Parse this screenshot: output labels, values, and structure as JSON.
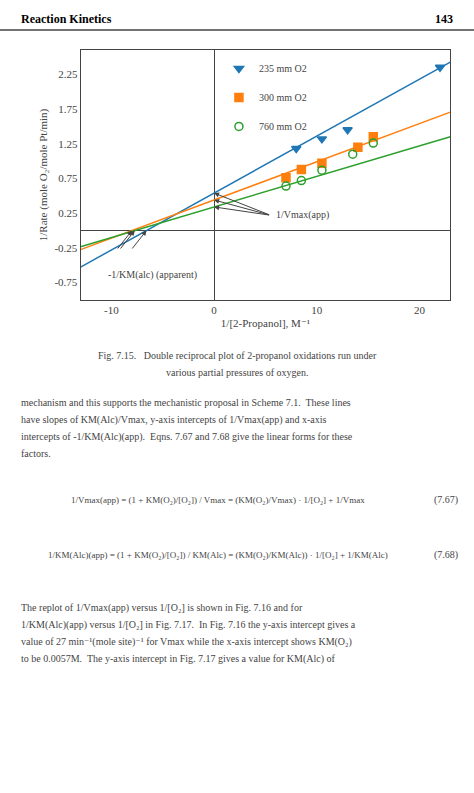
{
  "chart_data": {
    "type": "scatter",
    "header": "Reaction Kinetics",
    "page_number": "143",
    "xlabel": "1/[2-Propanol], M⁻¹",
    "ylabel": "1/Rate (mole O₂/mole Pt/min)",
    "xlim": [
      -13,
      23
    ],
    "ylim": [
      -1.0,
      2.6
    ],
    "xticks": [
      -10,
      0,
      10,
      20
    ],
    "yticks": [
      -0.75,
      -0.25,
      0.25,
      0.75,
      1.25,
      1.75,
      2.25
    ],
    "grid": false,
    "legend": "upper center",
    "series": [
      {
        "name": "235 mm O2",
        "marker": "triangle-down",
        "x": [
          8.0,
          10.5,
          13.0,
          22.0
        ],
        "y": [
          1.18,
          1.32,
          1.45,
          2.35
        ],
        "fit": {
          "x": [
            -13,
            23
          ],
          "y": [
            -0.526,
            2.426
          ]
        }
      },
      {
        "name": "300 mm O2",
        "marker": "square",
        "x": [
          7.0,
          8.5,
          10.5,
          14.0,
          15.5
        ],
        "y": [
          0.76,
          0.88,
          0.97,
          1.2,
          1.35
        ],
        "fit": {
          "x": [
            -13,
            23
          ],
          "y": [
            -0.275,
            1.705
          ]
        }
      },
      {
        "name": "760 mm O2",
        "marker": "circle-open",
        "x": [
          7.0,
          8.5,
          10.5,
          13.5,
          15.5
        ],
        "y": [
          0.64,
          0.72,
          0.87,
          1.1,
          1.26
        ],
        "fit": {
          "x": [
            -13,
            23
          ],
          "y": [
            -0.232,
            1.352
          ]
        }
      }
    ],
    "annotations": [
      {
        "text": "1/Vmax(app)",
        "points": [
          [
            0,
            0.54
          ],
          [
            0,
            0.44
          ],
          [
            0,
            0.34
          ]
        ]
      },
      {
        "text": "-1/KM(alc) (apparent)",
        "points": [
          [
            -6.585365853658537,
            0
          ],
          [
            -8.0,
            0
          ],
          [
            -7.7272727272727275,
            0
          ]
        ]
      }
    ],
    "caption": [
      "Fig. 7.15.   Double reciprocal plot of 2-propanol oxidations run under",
      "various partial pressures of oxygen."
    ],
    "body_text": [
      "mechanism and this supports the mechanistic proposal in Scheme 7.1.  These lines",
      "have slopes of KM(Alc)/Vmax, y-axis intercepts of 1/Vmax(app) and x-axis",
      "intercepts of -1/KM(Alc)(app).  Eqns. 7.67 and 7.68 give the linear forms for these",
      "factors."
    ],
    "equations": [
      {
        "text": "1/Vmax(app) = (1 + KM(O₂)/[O₂]) / Vmax = (KM(O₂)/Vmax) · 1/[O₂] + 1/Vmax",
        "label": "(7.67)"
      },
      {
        "text": "1/KM(Alc)(app) = (1 + KM(O₂)/[O₂]) / KM(Alc) = (KM(O₂)/KM(Alc)) · 1/[O₂] + 1/KM(Alc)",
        "label": "(7.68)"
      }
    ],
    "footer_text": [
      "The replot of 1/Vmax(app) versus 1/[O₂] is shown in Fig. 7.16 and for",
      "1/KM(Alc)(app) versus 1/[O₂] in Fig. 7.17.  In Fig. 7.16 the y-axis intercept gives a",
      "value of 27 min⁻¹(mole site)⁻¹ for Vmax while the x-axis intercept shows KM(O₂)",
      "to be 0.0057M.  The y-axis intercept in Fig. 7.17 gives a value for KM(Alc) of"
    ]
  }
}
